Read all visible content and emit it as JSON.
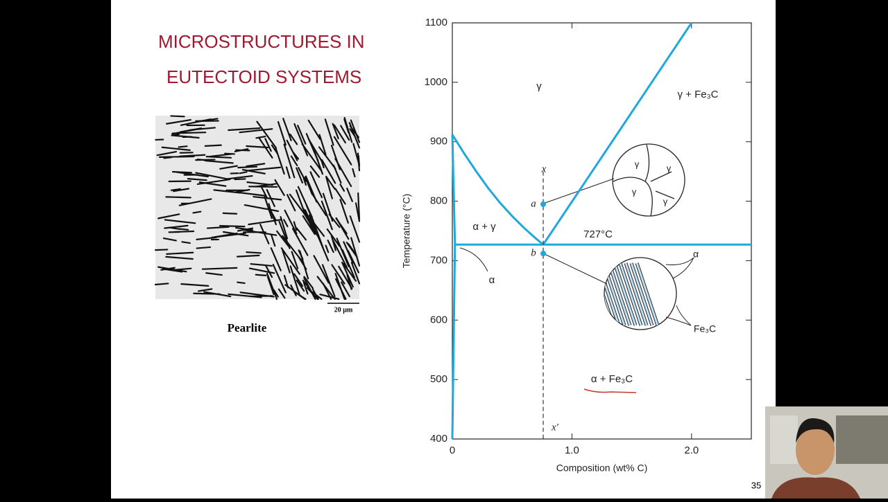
{
  "slide": {
    "title_lines": [
      "MICROSTRUCTURES IN",
      "EUTECTOID SYSTEMS"
    ],
    "caption": "Pearlite",
    "scale_bar": "20 µm",
    "page_number": "35"
  },
  "chart_data": {
    "type": "line",
    "x_label": "Composition (wt% C)",
    "y_label": "Temperature (°C)",
    "xlim": [
      0,
      2.5
    ],
    "ylim": [
      400,
      1100
    ],
    "xticks": [
      0,
      {
        "value": 1,
        "label": "1.0"
      },
      {
        "value": 2,
        "label": "2.0"
      }
    ],
    "yticks": [
      400,
      500,
      600,
      700,
      800,
      900,
      1000,
      1100
    ],
    "color": "#1fa8dc",
    "series": [
      {
        "x": [
          0,
          0.1,
          0.2,
          0.3,
          0.4,
          0.5,
          0.6,
          0.7,
          0.76
        ],
        "values": [
          912,
          880,
          850,
          822,
          797,
          775,
          755,
          737,
          727
        ]
      },
      {
        "x": [
          0,
          0.022,
          0
        ],
        "values": [
          912,
          727,
          400
        ]
      },
      {
        "x": [
          0.022,
          2.5
        ],
        "values": [
          727,
          727
        ]
      },
      {
        "x": [
          0.76,
          2.0
        ],
        "values": [
          727,
          1100
        ]
      },
      {
        "x": [
          0.76,
          0.76
        ],
        "values": [
          850,
          400
        ],
        "style": "dashed",
        "color": "#333333"
      },
      {
        "x": [
          0.76,
          0.76
        ],
        "values": [
          795,
          712
        ],
        "style": "markers"
      }
    ],
    "annotations": [
      "γ",
      "γ + Fe₃C",
      "α + γ",
      "α",
      "727°C",
      "α + Fe₃C",
      "x",
      "x′",
      "a",
      "b",
      "γ",
      "γ",
      "γ",
      "γ",
      "α",
      "Fe₃C"
    ]
  }
}
